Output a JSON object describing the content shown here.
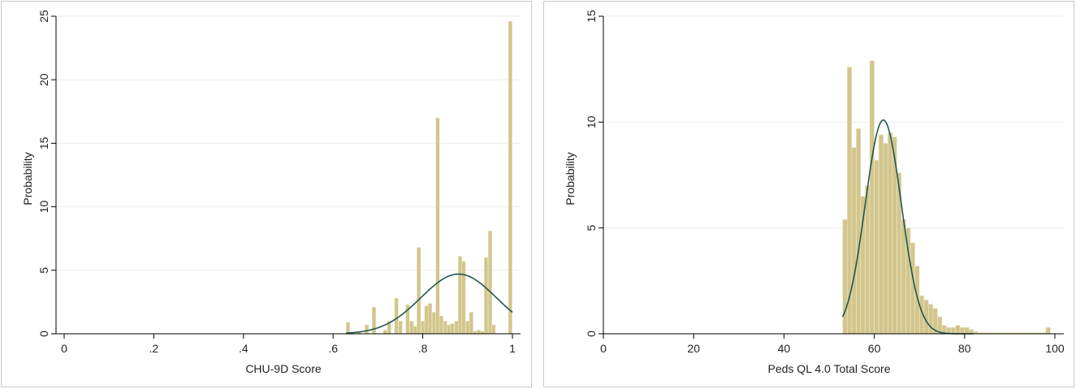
{
  "colors": {
    "bar_fill": "#d2c68c",
    "bar_stroke": "#efe9cf",
    "curve": "#1f5753",
    "grid": "#ebebeb",
    "axis": "#000000",
    "panel_border": "#c9c9c9"
  },
  "chart_data": [
    {
      "type": "bar",
      "chart_kind": "histogram with normal density overlay",
      "title": "",
      "xlabel": "CHU-9D Score",
      "ylabel": "Probability",
      "xlim": [
        0,
        1
      ],
      "ylim": [
        0,
        25
      ],
      "xticks": [
        0,
        0.2,
        0.4,
        0.6,
        0.8,
        1
      ],
      "xtick_labels": [
        "0",
        ".2",
        ".4",
        ".6",
        ".8",
        "1"
      ],
      "yticks": [
        0,
        5,
        10,
        15,
        20,
        25
      ],
      "ytick_labels": [
        "0",
        "5",
        "10",
        "15",
        "20",
        "25"
      ],
      "grid": true,
      "legend": "none",
      "bin_width": 0.00833,
      "bins": {
        "x_start": [
          0.629,
          0.654,
          0.671,
          0.687,
          0.712,
          0.721,
          0.737,
          0.746,
          0.762,
          0.771,
          0.779,
          0.787,
          0.796,
          0.804,
          0.812,
          0.821,
          0.829,
          0.837,
          0.846,
          0.854,
          0.862,
          0.871,
          0.879,
          0.887,
          0.896,
          0.904,
          0.912,
          0.921,
          0.929,
          0.937,
          0.946,
          0.954,
          0.991
        ],
        "values": [
          0.9,
          0.1,
          0.7,
          2.1,
          0.3,
          1.0,
          2.8,
          1.0,
          2.3,
          1.0,
          0.6,
          6.8,
          1.0,
          2.2,
          2.4,
          1.7,
          17.0,
          1.4,
          1.0,
          0.7,
          0.8,
          1.0,
          6.1,
          5.7,
          1.0,
          1.7,
          0.2,
          0.3,
          0.2,
          6.0,
          8.1,
          0.7,
          24.6
        ]
      },
      "normal_curve": {
        "mean": 0.88,
        "sd": 0.084,
        "peak_density": 4.7,
        "x_range": [
          0.629,
          1.0
        ]
      }
    },
    {
      "type": "bar",
      "chart_kind": "histogram with normal density overlay",
      "title": "",
      "xlabel": "Peds QL 4.0 Total Score",
      "ylabel": "Probability",
      "xlim": [
        0,
        100
      ],
      "ylim": [
        0,
        15
      ],
      "xticks": [
        0,
        20,
        40,
        60,
        80,
        100
      ],
      "xtick_labels": [
        "0",
        "20",
        "40",
        "60",
        "80",
        "100"
      ],
      "yticks": [
        0,
        5,
        10,
        15
      ],
      "ytick_labels": [
        "0",
        "5",
        "10",
        "15"
      ],
      "grid": true,
      "legend": "none",
      "bin_width": 1.0,
      "bins": {
        "x_start": [
          53,
          54,
          55,
          56,
          57,
          58,
          59,
          60,
          61,
          62,
          63,
          64,
          65,
          66,
          67,
          68,
          69,
          70,
          71,
          72,
          73,
          74,
          75,
          76,
          77,
          78,
          79,
          80,
          81,
          82,
          83,
          84,
          85,
          86,
          87,
          88,
          89,
          90,
          91,
          92,
          93,
          94,
          95,
          96,
          97,
          98
        ],
        "values": [
          5.4,
          12.6,
          8.8,
          9.7,
          6.5,
          7.0,
          12.9,
          8.2,
          9.4,
          9.0,
          9.5,
          9.3,
          7.6,
          5.4,
          5.0,
          4.3,
          3.2,
          1.8,
          1.6,
          1.4,
          1.2,
          0.8,
          0.4,
          0.3,
          0.3,
          0.4,
          0.3,
          0.3,
          0.2,
          0.1,
          0.05,
          0.05,
          0.05,
          0.05,
          0.05,
          0.05,
          0.05,
          0.05,
          0.05,
          0.05,
          0.05,
          0.05,
          0.05,
          0.05,
          0.05,
          0.3
        ]
      },
      "normal_curve": {
        "mean": 62.0,
        "sd": 4.0,
        "peak_density": 10.1,
        "x_range": [
          53,
          82
        ]
      }
    }
  ]
}
